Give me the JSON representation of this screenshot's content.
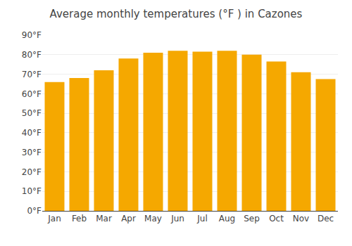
{
  "chart_data": {
    "type": "bar",
    "title": "Average monthly temperatures (°F ) in Cazones",
    "categories": [
      "Jan",
      "Feb",
      "Mar",
      "Apr",
      "May",
      "Jun",
      "Jul",
      "Aug",
      "Sep",
      "Oct",
      "Nov",
      "Dec"
    ],
    "values": [
      66,
      68,
      72,
      78,
      81,
      82,
      81.5,
      82,
      80,
      76.5,
      71,
      67.5
    ],
    "color": "#F5A800",
    "ylim": [
      0,
      90
    ],
    "yticks": [
      {
        "value": 0,
        "label": "0°F"
      },
      {
        "value": 10,
        "label": "10°F"
      },
      {
        "value": 20,
        "label": "20°F"
      },
      {
        "value": 30,
        "label": "30°F"
      },
      {
        "value": 40,
        "label": "40°F"
      },
      {
        "value": 50,
        "label": "50°F"
      },
      {
        "value": 60,
        "label": "60°F"
      },
      {
        "value": 70,
        "label": "70°F"
      },
      {
        "value": 80,
        "label": "80°F"
      },
      {
        "value": 90,
        "label": "90°F"
      }
    ],
    "grid": true
  }
}
